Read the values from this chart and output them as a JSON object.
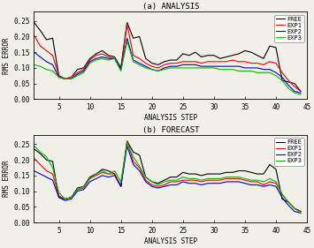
{
  "title_a": "(a) ANALYSIS",
  "title_b": "(b) FORECAST",
  "xlabel": "ANALYSIS STEP",
  "ylabel": "RMS ERROR",
  "xlim": [
    1,
    45
  ],
  "ylim": [
    0,
    0.28
  ],
  "yticks": [
    0,
    0.05,
    0.1,
    0.15,
    0.2,
    0.25
  ],
  "xticks": [
    5,
    10,
    15,
    20,
    25,
    30,
    35,
    40,
    45
  ],
  "colors": {
    "FREE": "#000000",
    "EXP1": "#ff0000",
    "EXP2": "#0000cc",
    "EXP3": "#00bb00"
  },
  "analysis": {
    "FREE": [
      0.245,
      0.22,
      0.19,
      0.195,
      0.075,
      0.065,
      0.07,
      0.095,
      0.1,
      0.13,
      0.145,
      0.155,
      0.14,
      0.135,
      0.1,
      0.245,
      0.195,
      0.2,
      0.13,
      0.115,
      0.11,
      0.12,
      0.125,
      0.125,
      0.145,
      0.14,
      0.15,
      0.135,
      0.14,
      0.14,
      0.13,
      0.135,
      0.14,
      0.145,
      0.155,
      0.15,
      0.14,
      0.13,
      0.17,
      0.165,
      0.06,
      0.055,
      0.05,
      0.025
    ],
    "EXP1": [
      0.205,
      0.17,
      0.155,
      0.14,
      0.075,
      0.065,
      0.07,
      0.085,
      0.095,
      0.125,
      0.14,
      0.145,
      0.135,
      0.13,
      0.095,
      0.24,
      0.14,
      0.13,
      0.115,
      0.105,
      0.1,
      0.11,
      0.115,
      0.115,
      0.12,
      0.12,
      0.12,
      0.115,
      0.12,
      0.12,
      0.12,
      0.12,
      0.125,
      0.12,
      0.12,
      0.115,
      0.115,
      0.11,
      0.12,
      0.115,
      0.085,
      0.06,
      0.04,
      0.025
    ],
    "EXP2": [
      0.15,
      0.135,
      0.12,
      0.11,
      0.07,
      0.065,
      0.065,
      0.08,
      0.09,
      0.12,
      0.13,
      0.135,
      0.13,
      0.13,
      0.095,
      0.195,
      0.125,
      0.115,
      0.105,
      0.095,
      0.09,
      0.1,
      0.105,
      0.105,
      0.11,
      0.11,
      0.11,
      0.105,
      0.105,
      0.105,
      0.105,
      0.105,
      0.105,
      0.105,
      0.1,
      0.1,
      0.1,
      0.095,
      0.095,
      0.085,
      0.07,
      0.045,
      0.025,
      0.02
    ],
    "EXP3": [
      0.11,
      0.105,
      0.095,
      0.09,
      0.07,
      0.065,
      0.065,
      0.075,
      0.085,
      0.115,
      0.125,
      0.13,
      0.125,
      0.13,
      0.09,
      0.185,
      0.12,
      0.11,
      0.1,
      0.095,
      0.09,
      0.095,
      0.1,
      0.1,
      0.1,
      0.1,
      0.1,
      0.1,
      0.1,
      0.1,
      0.095,
      0.095,
      0.095,
      0.09,
      0.09,
      0.09,
      0.085,
      0.085,
      0.085,
      0.075,
      0.06,
      0.035,
      0.02,
      0.015
    ]
  },
  "forecast": {
    "FREE": [
      0.235,
      0.22,
      0.2,
      0.195,
      0.08,
      0.075,
      0.08,
      0.11,
      0.115,
      0.145,
      0.155,
      0.17,
      0.165,
      0.155,
      0.115,
      0.26,
      0.225,
      0.215,
      0.145,
      0.13,
      0.125,
      0.135,
      0.145,
      0.145,
      0.16,
      0.155,
      0.155,
      0.15,
      0.155,
      0.155,
      0.155,
      0.16,
      0.16,
      0.165,
      0.165,
      0.16,
      0.155,
      0.155,
      0.185,
      0.17,
      0.075,
      0.065,
      0.045,
      0.035
    ],
    "EXP1": [
      0.205,
      0.185,
      0.165,
      0.155,
      0.085,
      0.075,
      0.08,
      0.105,
      0.11,
      0.14,
      0.15,
      0.16,
      0.155,
      0.155,
      0.115,
      0.26,
      0.195,
      0.175,
      0.135,
      0.12,
      0.115,
      0.12,
      0.13,
      0.13,
      0.135,
      0.135,
      0.135,
      0.13,
      0.135,
      0.135,
      0.135,
      0.14,
      0.14,
      0.14,
      0.135,
      0.13,
      0.13,
      0.12,
      0.13,
      0.125,
      0.09,
      0.065,
      0.045,
      0.035
    ],
    "EXP2": [
      0.165,
      0.155,
      0.145,
      0.135,
      0.08,
      0.07,
      0.075,
      0.1,
      0.105,
      0.13,
      0.14,
      0.15,
      0.145,
      0.15,
      0.115,
      0.245,
      0.185,
      0.165,
      0.13,
      0.115,
      0.11,
      0.115,
      0.12,
      0.12,
      0.13,
      0.125,
      0.125,
      0.12,
      0.125,
      0.125,
      0.125,
      0.13,
      0.13,
      0.13,
      0.125,
      0.12,
      0.12,
      0.115,
      0.12,
      0.115,
      0.08,
      0.055,
      0.035,
      0.03
    ],
    "EXP3": [
      0.245,
      0.225,
      0.21,
      0.175,
      0.095,
      0.075,
      0.08,
      0.105,
      0.115,
      0.14,
      0.155,
      0.165,
      0.155,
      0.165,
      0.13,
      0.255,
      0.21,
      0.18,
      0.145,
      0.13,
      0.12,
      0.13,
      0.135,
      0.135,
      0.145,
      0.14,
      0.14,
      0.135,
      0.14,
      0.14,
      0.14,
      0.145,
      0.145,
      0.145,
      0.14,
      0.135,
      0.135,
      0.13,
      0.14,
      0.13,
      0.09,
      0.065,
      0.045,
      0.03
    ]
  },
  "linewidth": 0.8,
  "axes_facecolor": "#f0f0e8",
  "fig_facecolor": "#f0f0e8"
}
